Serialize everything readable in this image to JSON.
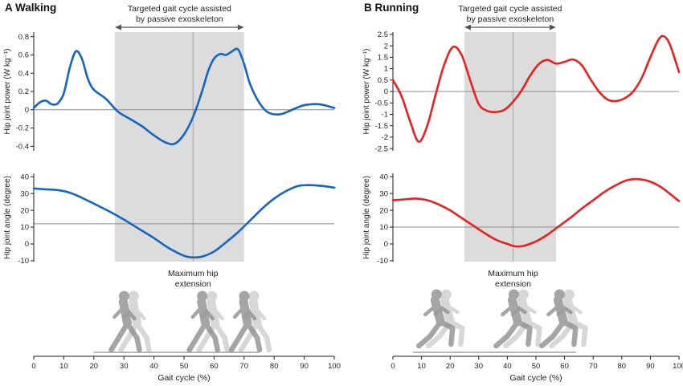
{
  "figure": {
    "background": "#ffffff",
    "band_gray": "#dcdcdc"
  },
  "chart_data": {
    "type": "line",
    "xlabel": "Gait cycle (%)",
    "panels": [
      {
        "key": "a",
        "title": "A Walking",
        "color": "#1565c0",
        "band_color": "#dcdcdc",
        "annotation": [
          "Targeted gait cycle assisted",
          "by passive exoskeleton"
        ],
        "assist_region_pct": [
          27,
          70
        ],
        "max_extension_pct": 53,
        "max_extension_label": [
          "Maximum hip",
          "extension"
        ],
        "xlabel": "Gait cycle (%)",
        "xlim": [
          0,
          100
        ],
        "x_ticks": [
          0,
          10,
          20,
          30,
          40,
          50,
          60,
          70,
          80,
          90,
          100
        ],
        "power": {
          "ylabel": "Hip joint power (W kg⁻¹)",
          "ylim": [
            -0.45,
            0.85
          ],
          "yticks": [
            -0.4,
            -0.2,
            0,
            0.2,
            0.4,
            0.6,
            0.8
          ],
          "ref_y": 0,
          "x": [
            0,
            2,
            4,
            6,
            8,
            10,
            12,
            14,
            16,
            18,
            20,
            24,
            28,
            32,
            36,
            40,
            44,
            47,
            50,
            53,
            56,
            58,
            60,
            62,
            64,
            66,
            68,
            70,
            72,
            75,
            78,
            82,
            86,
            90,
            95,
            100
          ],
          "y": [
            0.02,
            0.08,
            0.1,
            0.06,
            0.07,
            0.18,
            0.46,
            0.64,
            0.56,
            0.34,
            0.22,
            0.12,
            -0.02,
            -0.1,
            -0.18,
            -0.28,
            -0.36,
            -0.37,
            -0.27,
            -0.08,
            0.2,
            0.42,
            0.56,
            0.61,
            0.6,
            0.64,
            0.66,
            0.5,
            0.28,
            0.08,
            -0.03,
            -0.05,
            0.0,
            0.05,
            0.06,
            0.02
          ]
        },
        "angle": {
          "ylabel": "Hip joint angle (degree)",
          "ylim": [
            -10.5,
            42
          ],
          "yticks": [
            -10,
            0,
            10,
            20,
            30,
            40
          ],
          "ref_y": 12,
          "x": [
            0,
            4,
            8,
            12,
            16,
            20,
            25,
            30,
            35,
            40,
            45,
            50,
            53,
            56,
            60,
            64,
            68,
            72,
            76,
            80,
            84,
            88,
            92,
            96,
            100
          ],
          "y": [
            33,
            32.5,
            32,
            30.5,
            27.5,
            24,
            19.5,
            14.5,
            9,
            3.5,
            -2.5,
            -7,
            -8,
            -7.5,
            -4.5,
            1,
            7,
            14,
            21,
            27,
            31.5,
            34.5,
            35,
            34.5,
            33.5
          ]
        },
        "figures": {
          "name": "walking-silhouettes",
          "pose": "walk",
          "positions_pct": [
            29,
            55,
            69
          ],
          "ground_pct": [
            20,
            75
          ]
        }
      },
      {
        "key": "b",
        "title": "B Running",
        "color": "#e8201f",
        "band_color": "#dcdcdc",
        "annotation": [
          "Targeted gait cycle assisted",
          "by passive exoskeleton"
        ],
        "assist_region_pct": [
          25,
          57
        ],
        "max_extension_pct": 42,
        "max_extension_label": [
          "Maximum hip",
          "extension"
        ],
        "xlabel": "Gait cycle (%)",
        "xlim": [
          0,
          100
        ],
        "x_ticks": [
          0,
          10,
          20,
          30,
          40,
          50,
          60,
          70,
          80,
          90,
          100
        ],
        "power": {
          "ylabel": "Hip joint power (W kg⁻¹)",
          "ylim": [
            -2.6,
            2.6
          ],
          "yticks": [
            -2.5,
            -2,
            -1.5,
            -1,
            -0.5,
            0,
            0.5,
            1,
            1.5,
            2,
            2.5
          ],
          "ref_y": 0,
          "x": [
            0,
            3,
            6,
            9,
            12,
            15,
            18,
            21,
            24,
            27,
            30,
            33,
            36,
            39,
            42,
            45,
            48,
            51,
            54,
            57,
            60,
            63,
            66,
            69,
            72,
            75,
            78,
            81,
            84,
            87,
            90,
            93,
            95,
            97,
            100
          ],
          "y": [
            0.5,
            -0.2,
            -1.3,
            -2.2,
            -1.5,
            -0.1,
            1.2,
            1.95,
            1.6,
            0.5,
            -0.55,
            -0.85,
            -0.9,
            -0.8,
            -0.45,
            0.05,
            0.7,
            1.2,
            1.38,
            1.22,
            1.3,
            1.4,
            1.15,
            0.55,
            0.0,
            -0.35,
            -0.42,
            -0.3,
            0.0,
            0.6,
            1.5,
            2.3,
            2.4,
            2.0,
            0.85
          ]
        },
        "angle": {
          "ylabel": "Hip joint angle (degree)",
          "ylim": [
            -10.5,
            42
          ],
          "yticks": [
            -10,
            0,
            10,
            20,
            30,
            40
          ],
          "ref_y": 10,
          "x": [
            0,
            4,
            8,
            12,
            16,
            20,
            24,
            28,
            32,
            36,
            40,
            43,
            46,
            50,
            54,
            58,
            62,
            66,
            70,
            74,
            78,
            82,
            86,
            90,
            94,
            100
          ],
          "y": [
            26,
            26.5,
            27,
            26,
            23.5,
            20,
            15.5,
            11,
            6.5,
            2.5,
            0,
            -1.5,
            -1,
            1.5,
            5.5,
            10.5,
            15.5,
            21,
            26,
            31,
            35,
            38,
            38.5,
            37,
            33.5,
            25.5
          ]
        },
        "figures": {
          "name": "running-silhouettes",
          "pose": "run",
          "positions_pct": [
            13,
            40,
            56
          ],
          "ground_pct": [
            7,
            64
          ]
        }
      }
    ]
  }
}
